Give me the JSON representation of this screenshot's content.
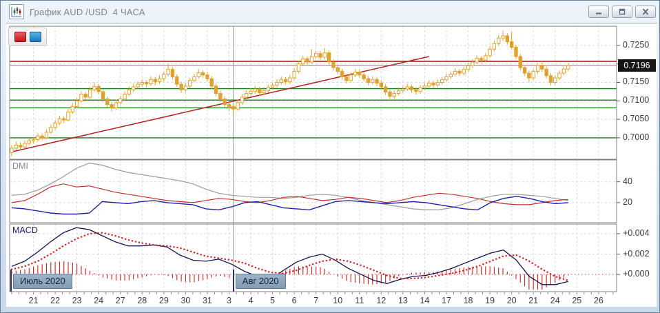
{
  "window": {
    "title": "График AUD /USD  4 ЧАСА",
    "buttons": {
      "minimize": "minimize",
      "restore": "restore",
      "close": "close"
    }
  },
  "toolbar": {
    "sell_button_color": "#c01818",
    "buy_button_color": "#1878c0"
  },
  "chart": {
    "type": "candlestick",
    "timeframe_bars_per_day": 5,
    "price_axis": {
      "range": {
        "top": 0.7302,
        "bottom": 0.6942
      },
      "labels": [
        {
          "text": "0.7250",
          "value": 0.725
        },
        {
          "text": "0.7150",
          "value": 0.715
        },
        {
          "text": "0.7100",
          "value": 0.71
        },
        {
          "text": "0.7050",
          "value": 0.705
        },
        {
          "text": "0.7000",
          "value": 0.7
        }
      ],
      "gridline_prices": [
        0.725,
        0.72,
        0.715,
        0.71,
        0.705,
        0.7
      ],
      "current": {
        "text": "0.7196",
        "value": 0.7196
      }
    },
    "time_axis": {
      "labels": [
        "21",
        "22",
        "23",
        "24",
        "27",
        "28",
        "29",
        "30",
        "31",
        "3",
        "4",
        "5",
        "6",
        "7",
        "10",
        "11",
        "12",
        "13",
        "14",
        "17",
        "18",
        "19",
        "20",
        "21",
        "24",
        "25",
        "26"
      ],
      "months": [
        {
          "label": "Июль 2020",
          "starts_at_bar": 0,
          "show_separator": false
        },
        {
          "label": "Авг 2020",
          "starts_at_bar": 51,
          "show_separator": true
        }
      ]
    },
    "levels": {
      "green_lines": [
        0.7133,
        0.7102,
        0.7081,
        0.7
      ],
      "red_line": 0.7207
    },
    "trendline": {
      "from": {
        "bar": 0,
        "price": 0.6962
      },
      "to": {
        "bar": 96,
        "price": 0.722
      }
    },
    "candles": [
      [
        0.696,
        0.698,
        0.695,
        0.6972
      ],
      [
        0.6972,
        0.699,
        0.6966,
        0.698
      ],
      [
        0.698,
        0.6988,
        0.6968,
        0.6975
      ],
      [
        0.6975,
        0.6993,
        0.697,
        0.6985
      ],
      [
        0.6985,
        0.7,
        0.698,
        0.6992
      ],
      [
        0.6992,
        0.7003,
        0.6985,
        0.6995
      ],
      [
        0.6995,
        0.7013,
        0.699,
        0.7005
      ],
      [
        0.7005,
        0.7012,
        0.6993,
        0.7
      ],
      [
        0.7,
        0.7023,
        0.6996,
        0.7015
      ],
      [
        0.7015,
        0.7036,
        0.701,
        0.7028
      ],
      [
        0.7028,
        0.7048,
        0.7022,
        0.704
      ],
      [
        0.704,
        0.706,
        0.7035,
        0.7052
      ],
      [
        0.7052,
        0.7058,
        0.704,
        0.7048
      ],
      [
        0.7048,
        0.7078,
        0.7044,
        0.707
      ],
      [
        0.707,
        0.7093,
        0.7065,
        0.7085
      ],
      [
        0.7085,
        0.7108,
        0.708,
        0.71
      ],
      [
        0.71,
        0.7126,
        0.7095,
        0.7118
      ],
      [
        0.7118,
        0.7124,
        0.7104,
        0.711
      ],
      [
        0.711,
        0.7138,
        0.7105,
        0.713
      ],
      [
        0.713,
        0.715,
        0.7124,
        0.7139
      ],
      [
        0.7139,
        0.7146,
        0.7118,
        0.7125
      ],
      [
        0.7125,
        0.7132,
        0.7098,
        0.7105
      ],
      [
        0.7105,
        0.7112,
        0.7082,
        0.709
      ],
      [
        0.709,
        0.7098,
        0.7072,
        0.7081
      ],
      [
        0.7081,
        0.7103,
        0.7076,
        0.7095
      ],
      [
        0.7095,
        0.7113,
        0.709,
        0.7105
      ],
      [
        0.7105,
        0.7126,
        0.71,
        0.7118
      ],
      [
        0.7118,
        0.7138,
        0.7113,
        0.713
      ],
      [
        0.713,
        0.7146,
        0.7124,
        0.7138
      ],
      [
        0.7138,
        0.7153,
        0.7132,
        0.7145
      ],
      [
        0.7145,
        0.7158,
        0.7138,
        0.715
      ],
      [
        0.715,
        0.7156,
        0.7136,
        0.7146
      ],
      [
        0.7146,
        0.7166,
        0.714,
        0.7158
      ],
      [
        0.7158,
        0.7164,
        0.7142,
        0.7152
      ],
      [
        0.7152,
        0.717,
        0.7146,
        0.716
      ],
      [
        0.716,
        0.718,
        0.7154,
        0.7172
      ],
      [
        0.7172,
        0.72,
        0.7166,
        0.7185
      ],
      [
        0.7185,
        0.7192,
        0.7158,
        0.7165
      ],
      [
        0.7165,
        0.7172,
        0.7138,
        0.7145
      ],
      [
        0.7145,
        0.7152,
        0.7122,
        0.713
      ],
      [
        0.713,
        0.7148,
        0.7124,
        0.714
      ],
      [
        0.714,
        0.7163,
        0.7134,
        0.7155
      ],
      [
        0.7155,
        0.7173,
        0.715,
        0.7165
      ],
      [
        0.7165,
        0.7186,
        0.716,
        0.7176
      ],
      [
        0.7176,
        0.7183,
        0.7162,
        0.717
      ],
      [
        0.717,
        0.7178,
        0.7152,
        0.716
      ],
      [
        0.716,
        0.7167,
        0.7132,
        0.714
      ],
      [
        0.714,
        0.7147,
        0.7112,
        0.712
      ],
      [
        0.712,
        0.7128,
        0.7097,
        0.7105
      ],
      [
        0.7105,
        0.7112,
        0.7082,
        0.709
      ],
      [
        0.709,
        0.7097,
        0.7072,
        0.7085
      ],
      [
        0.7085,
        0.7092,
        0.7062,
        0.7078
      ],
      [
        0.7078,
        0.7103,
        0.7073,
        0.7095
      ],
      [
        0.7095,
        0.7118,
        0.709,
        0.711
      ],
      [
        0.711,
        0.7128,
        0.7105,
        0.712
      ],
      [
        0.712,
        0.7134,
        0.7114,
        0.7126
      ],
      [
        0.7126,
        0.714,
        0.712,
        0.7132
      ],
      [
        0.7132,
        0.7138,
        0.7114,
        0.7122
      ],
      [
        0.7122,
        0.7136,
        0.7116,
        0.7128
      ],
      [
        0.7128,
        0.7144,
        0.7122,
        0.7136
      ],
      [
        0.7136,
        0.715,
        0.713,
        0.7142
      ],
      [
        0.7142,
        0.7158,
        0.7136,
        0.715
      ],
      [
        0.715,
        0.7166,
        0.7144,
        0.7158
      ],
      [
        0.7158,
        0.7164,
        0.7144,
        0.7152
      ],
      [
        0.7152,
        0.717,
        0.7146,
        0.7162
      ],
      [
        0.7162,
        0.7188,
        0.7156,
        0.718
      ],
      [
        0.718,
        0.7208,
        0.7174,
        0.72
      ],
      [
        0.72,
        0.7222,
        0.7194,
        0.7214
      ],
      [
        0.7214,
        0.722,
        0.7196,
        0.7205
      ],
      [
        0.7205,
        0.724,
        0.72,
        0.722
      ],
      [
        0.722,
        0.7236,
        0.7214,
        0.7228
      ],
      [
        0.7228,
        0.7235,
        0.721,
        0.7218
      ],
      [
        0.7218,
        0.7243,
        0.7212,
        0.723
      ],
      [
        0.723,
        0.7237,
        0.7198,
        0.7205
      ],
      [
        0.7205,
        0.7212,
        0.7182,
        0.719
      ],
      [
        0.719,
        0.7198,
        0.7172,
        0.718
      ],
      [
        0.718,
        0.7187,
        0.7157,
        0.7165
      ],
      [
        0.7165,
        0.7172,
        0.7147,
        0.7155
      ],
      [
        0.7155,
        0.7178,
        0.715,
        0.717
      ],
      [
        0.717,
        0.7186,
        0.7164,
        0.7178
      ],
      [
        0.7178,
        0.7185,
        0.7162,
        0.717
      ],
      [
        0.717,
        0.7177,
        0.7152,
        0.716
      ],
      [
        0.716,
        0.7167,
        0.7142,
        0.715
      ],
      [
        0.715,
        0.7166,
        0.7144,
        0.7158
      ],
      [
        0.7158,
        0.7165,
        0.714,
        0.7148
      ],
      [
        0.7148,
        0.7155,
        0.713,
        0.7138
      ],
      [
        0.7138,
        0.7145,
        0.7116,
        0.7124
      ],
      [
        0.7124,
        0.7131,
        0.71,
        0.7112
      ],
      [
        0.7112,
        0.7128,
        0.7106,
        0.712
      ],
      [
        0.712,
        0.7136,
        0.7114,
        0.7128
      ],
      [
        0.7128,
        0.714,
        0.7122,
        0.7132
      ],
      [
        0.7132,
        0.7146,
        0.7126,
        0.7138
      ],
      [
        0.7138,
        0.7144,
        0.7122,
        0.713
      ],
      [
        0.713,
        0.7137,
        0.7117,
        0.7125
      ],
      [
        0.7125,
        0.7143,
        0.712,
        0.7135
      ],
      [
        0.7135,
        0.7148,
        0.7129,
        0.714
      ],
      [
        0.714,
        0.7156,
        0.7134,
        0.7148
      ],
      [
        0.7148,
        0.7154,
        0.7135,
        0.7143
      ],
      [
        0.7143,
        0.7158,
        0.7137,
        0.715
      ],
      [
        0.715,
        0.7165,
        0.7144,
        0.7157
      ],
      [
        0.7157,
        0.7173,
        0.7151,
        0.7165
      ],
      [
        0.7165,
        0.718,
        0.7159,
        0.7172
      ],
      [
        0.7172,
        0.7188,
        0.7166,
        0.718
      ],
      [
        0.718,
        0.7186,
        0.7167,
        0.7175
      ],
      [
        0.7175,
        0.7193,
        0.7169,
        0.7185
      ],
      [
        0.7185,
        0.7203,
        0.7179,
        0.7195
      ],
      [
        0.7195,
        0.7213,
        0.7189,
        0.7205
      ],
      [
        0.7205,
        0.7223,
        0.7199,
        0.7215
      ],
      [
        0.7215,
        0.7221,
        0.7202,
        0.721
      ],
      [
        0.721,
        0.723,
        0.7204,
        0.7222
      ],
      [
        0.7222,
        0.7248,
        0.7216,
        0.724
      ],
      [
        0.724,
        0.7263,
        0.7234,
        0.7255
      ],
      [
        0.7255,
        0.7278,
        0.7249,
        0.727
      ],
      [
        0.727,
        0.729,
        0.7262,
        0.7276
      ],
      [
        0.7276,
        0.7283,
        0.7252,
        0.726
      ],
      [
        0.726,
        0.7287,
        0.724,
        0.7245
      ],
      [
        0.7245,
        0.7252,
        0.7212,
        0.722
      ],
      [
        0.722,
        0.7227,
        0.7182,
        0.719
      ],
      [
        0.719,
        0.7197,
        0.7167,
        0.7175
      ],
      [
        0.7175,
        0.7182,
        0.715,
        0.7162
      ],
      [
        0.7162,
        0.7185,
        0.7156,
        0.718
      ],
      [
        0.718,
        0.7202,
        0.7174,
        0.7196
      ],
      [
        0.7196,
        0.7207,
        0.7178,
        0.7186
      ],
      [
        0.7186,
        0.7193,
        0.716,
        0.7168
      ],
      [
        0.7168,
        0.7175,
        0.7142,
        0.715
      ],
      [
        0.715,
        0.7169,
        0.7144,
        0.7162
      ],
      [
        0.7162,
        0.7182,
        0.7156,
        0.7175
      ],
      [
        0.7175,
        0.7193,
        0.7169,
        0.7186
      ],
      [
        0.7186,
        0.7202,
        0.718,
        0.7196
      ]
    ]
  },
  "indicators": {
    "dmi": {
      "label": "DMI",
      "range": {
        "top": 61,
        "bottom": 0.7
      },
      "axis_labels": [
        {
          "text": "40",
          "value": 40
        },
        {
          "text": "20",
          "value": 20
        }
      ],
      "gridline_values": [
        40,
        20
      ],
      "series": {
        "adx": [
          27,
          28,
          32,
          38,
          45,
          53,
          58,
          56,
          52,
          49,
          47,
          45,
          43,
          41,
          38,
          33,
          29,
          27,
          26,
          25,
          25,
          24,
          25,
          27,
          28,
          27,
          25,
          22,
          20,
          18,
          16,
          14,
          13,
          13,
          15,
          19,
          23,
          26,
          28,
          28,
          27,
          26,
          24,
          22
        ],
        "plus_di": [
          20,
          22,
          28,
          35,
          38,
          35,
          36,
          33,
          30,
          28,
          26,
          24,
          22,
          21,
          20,
          22,
          24,
          23,
          21,
          20,
          22,
          25,
          26,
          24,
          22,
          23,
          25,
          24,
          22,
          20,
          22,
          25,
          27,
          29,
          28,
          26,
          24,
          21,
          19,
          18,
          18,
          20,
          22,
          23
        ],
        "minus_di": [
          15,
          14,
          12,
          10,
          9,
          9,
          10,
          21,
          20,
          19,
          21,
          22,
          20,
          19,
          18,
          14,
          13,
          16,
          20,
          21,
          18,
          15,
          14,
          13,
          17,
          21,
          22,
          21,
          20,
          19,
          20,
          21,
          20,
          18,
          16,
          14,
          13,
          20,
          24,
          26,
          24,
          21,
          19,
          20
        ]
      }
    },
    "macd": {
      "label": "MACD",
      "range": {
        "top": 0.00495,
        "bottom": -0.00169
      },
      "axis_labels": [
        {
          "text": "+0.004",
          "value": 0.004
        },
        {
          "text": "+0.002",
          "value": 0.002
        },
        {
          "text": "+0.000",
          "value": 0.0
        }
      ],
      "gridline_values": [
        0.004,
        0.002
      ],
      "series": {
        "macd": [
          0.0008,
          0.0013,
          0.0022,
          0.0032,
          0.0041,
          0.0046,
          0.0044,
          0.0038,
          0.0032,
          0.0028,
          0.0028,
          0.0029,
          0.0027,
          0.0019,
          0.0014,
          0.0013,
          0.0015,
          0.001,
          0.0003,
          -0.0002,
          -0.0005,
          0.0004,
          0.0012,
          0.0017,
          0.002,
          0.0014,
          0.0006,
          0.0,
          -0.0006,
          -0.0009,
          -0.0005,
          -0.0002,
          -0.0001,
          0.0002,
          0.0006,
          0.0011,
          0.0016,
          0.0021,
          0.0024,
          0.0014,
          -0.0002,
          -0.001,
          -0.001,
          -0.0007
        ],
        "signal": [
          0.0005,
          0.0008,
          0.0013,
          0.002,
          0.0028,
          0.0035,
          0.004,
          0.0041,
          0.0038,
          0.0034,
          0.0031,
          0.0029,
          0.0028,
          0.0026,
          0.0022,
          0.0018,
          0.0016,
          0.0014,
          0.0011,
          0.0006,
          0.0002,
          0.0001,
          0.0004,
          0.0009,
          0.0013,
          0.0015,
          0.0013,
          0.0009,
          0.0004,
          -0.0001,
          -0.0004,
          -0.0004,
          -0.0003,
          -0.0001,
          0.0001,
          0.0004,
          0.0008,
          0.0013,
          0.0018,
          0.0019,
          0.0013,
          0.0005,
          -0.0002,
          -0.0006
        ]
      }
    }
  },
  "colors": {
    "candle": "#e0a22e",
    "level_green": "#1d7a1d",
    "level_red": "#9b1c17",
    "trend": "#b22222",
    "current_line": "#808080",
    "adx": "#999999",
    "plus_di": "#c03030",
    "minus_di": "#2020a8",
    "macd_line": "#12124e",
    "signal": "#cc2222",
    "histogram": "#cc2222",
    "grid": "#d9d9d9",
    "panel_border": "#808080",
    "separator": "#9a9a9a"
  }
}
